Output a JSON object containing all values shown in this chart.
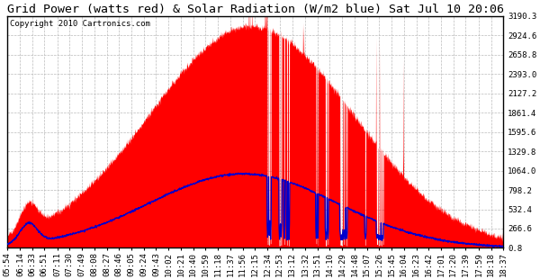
{
  "title": "Grid Power (watts red) & Solar Radiation (W/m2 blue) Sat Jul 10 20:06",
  "copyright": "Copyright 2010 Cartronics.com",
  "y_ticks": [
    0.8,
    266.6,
    532.4,
    798.2,
    1064.0,
    1329.8,
    1595.6,
    1861.4,
    2127.2,
    2393.0,
    2658.8,
    2924.6,
    3190.3
  ],
  "x_labels": [
    "05:54",
    "06:14",
    "06:33",
    "06:51",
    "07:11",
    "07:30",
    "07:49",
    "08:08",
    "08:27",
    "08:46",
    "09:05",
    "09:24",
    "09:43",
    "10:02",
    "10:21",
    "10:40",
    "10:59",
    "11:18",
    "11:37",
    "11:56",
    "12:15",
    "12:34",
    "12:53",
    "13:12",
    "13:32",
    "13:51",
    "14:10",
    "14:29",
    "14:48",
    "15:07",
    "15:26",
    "15:45",
    "16:04",
    "16:23",
    "16:42",
    "17:01",
    "17:20",
    "17:39",
    "17:59",
    "18:18",
    "18:37"
  ],
  "background_color": "#ffffff",
  "plot_bg_color": "#ffffff",
  "grid_color": "#bbbbbb",
  "red_fill_color": "#ff0000",
  "blue_line_color": "#0000cc",
  "title_color": "#000000",
  "border_color": "#000000",
  "y_min": 0.8,
  "y_max": 3190.3,
  "title_fontsize": 9.5,
  "copyright_fontsize": 6.5,
  "tick_fontsize": 6.5
}
